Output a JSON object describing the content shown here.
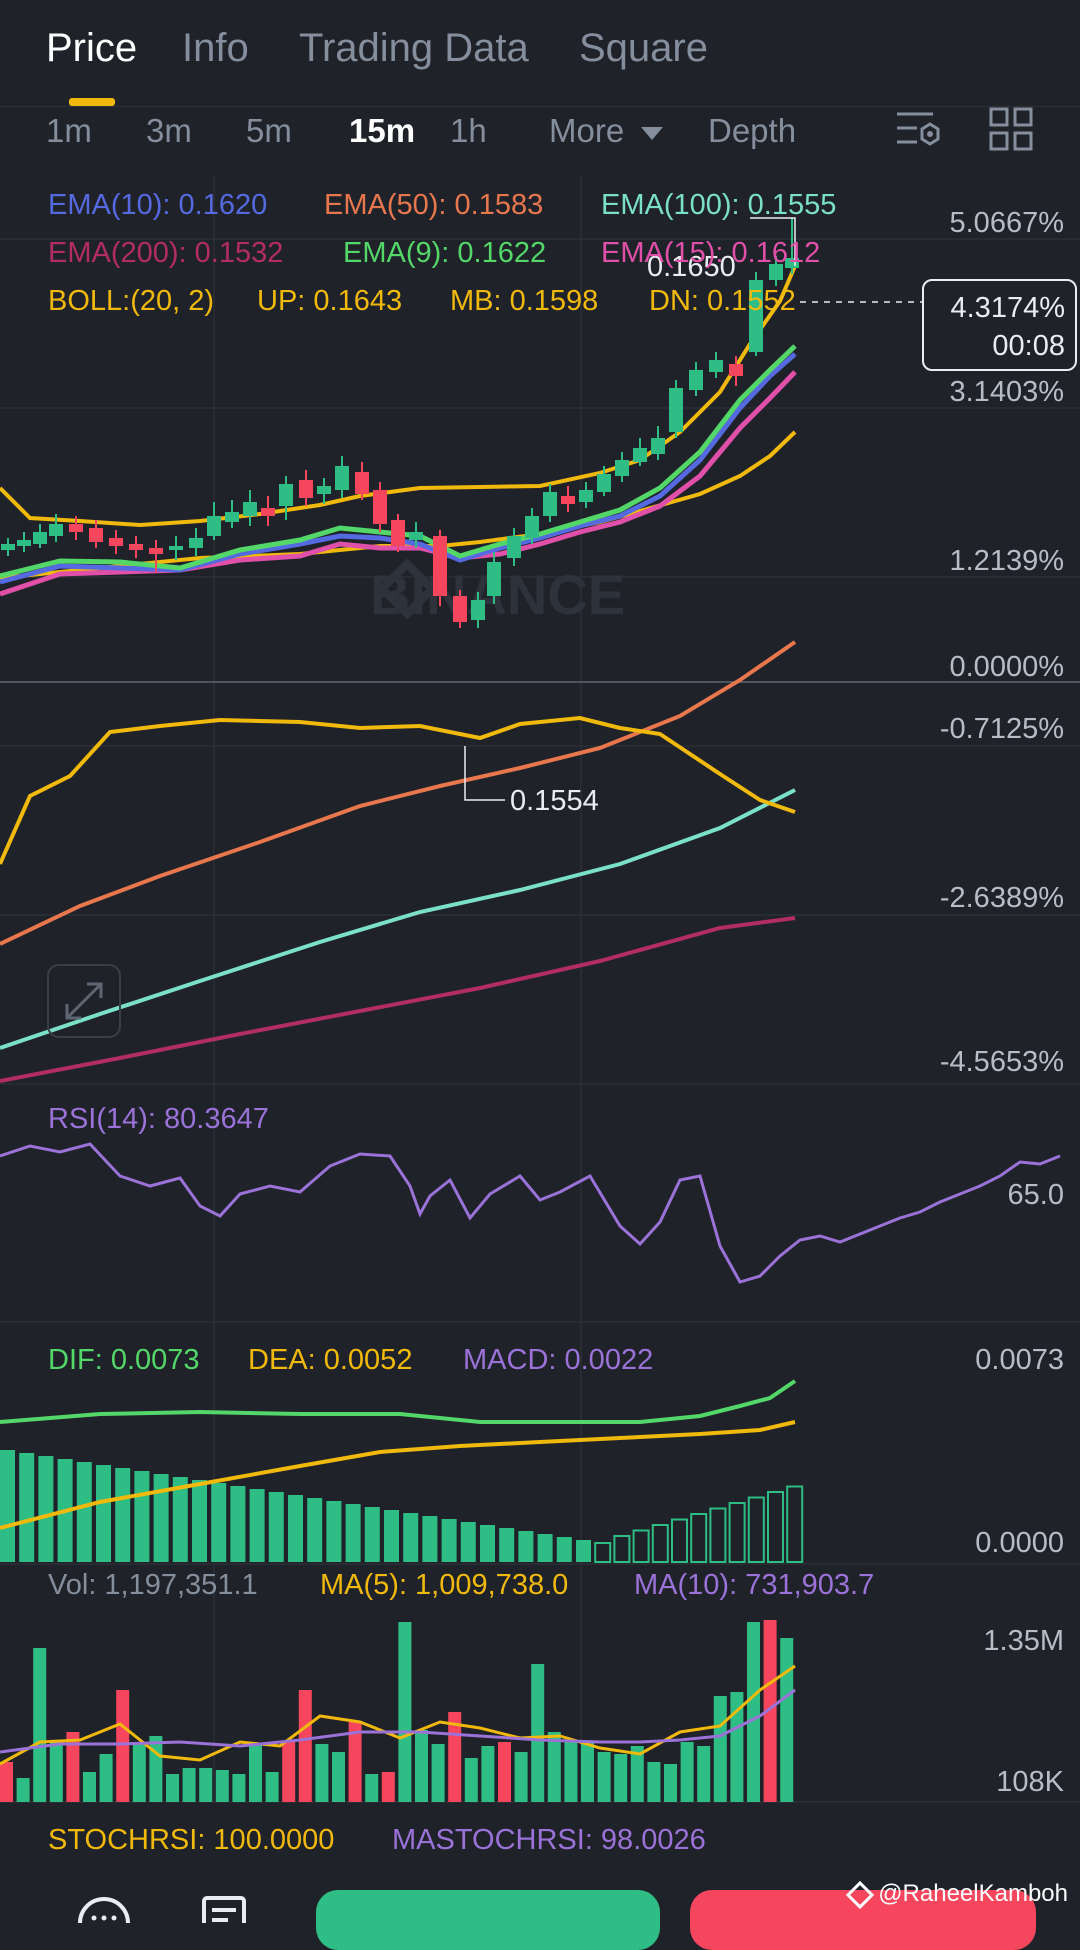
{
  "tabs": [
    {
      "label": "Price",
      "active": true
    },
    {
      "label": "Info",
      "active": false
    },
    {
      "label": "Trading Data",
      "active": false
    },
    {
      "label": "Square",
      "active": false
    }
  ],
  "intervals": [
    {
      "label": "1m"
    },
    {
      "label": "3m"
    },
    {
      "label": "5m"
    },
    {
      "label": "15m",
      "active": true
    },
    {
      "label": "1h"
    },
    {
      "label": "More"
    },
    {
      "label": "Depth"
    }
  ],
  "toolbar_icons": [
    "chart-settings-icon",
    "grid-layout-icon"
  ],
  "indicators": {
    "ema10": "EMA(10): 0.1620",
    "ema50": "EMA(50): 0.1583",
    "ema100": "EMA(100): 0.1555",
    "ema200": "EMA(200): 0.1532",
    "ema9": "EMA(9): 0.1622",
    "ema15": "EMA(15): 0.1612",
    "boll": "BOLL:(20, 2)",
    "boll_up": "UP: 0.1643",
    "boll_mb": "MB: 0.1598",
    "boll_dn": "DN: 0.1552"
  },
  "price_axis": [
    "5.0667%",
    "3.1403%",
    "1.2139%",
    "0.0000%",
    "-0.7125%",
    "-2.6389%",
    "-4.5653%"
  ],
  "current": {
    "change": "4.3174%",
    "countdown": "00:08"
  },
  "high_label": "0.1650",
  "low_label": "0.1554",
  "watermark": "BINANCE",
  "rsi": {
    "label": "RSI(14): 80.3647",
    "axis": "65.0"
  },
  "macd": {
    "dif": "DIF: 0.0073",
    "dea": "DEA: 0.0052",
    "macd": "MACD: 0.0022",
    "axis_top": "0.0073",
    "axis_bottom": "0.0000"
  },
  "volume": {
    "vol": "Vol: 1,197,351.1",
    "ma5": "MA(5): 1,009,738.0",
    "ma10": "MA(10): 731,903.7",
    "axis_top": "1.35M",
    "axis_bottom": "108K"
  },
  "stochrsi": {
    "label": "STOCHRSI: 100.0000",
    "ma": "MASTOCHRSI: 98.0026"
  },
  "credit": "@RaheelKamboh",
  "colors": {
    "up": "#2ebd85",
    "down": "#f6465d",
    "accent": "#f0b90b",
    "bg": "#1f2229"
  }
}
